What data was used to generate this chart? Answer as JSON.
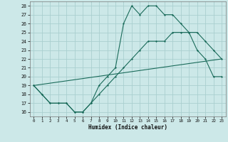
{
  "xlabel": "Humidex (Indice chaleur)",
  "background_color": "#cce8e8",
  "grid_color": "#aacfcf",
  "line_color": "#1a6b5a",
  "xlim": [
    -0.5,
    23.5
  ],
  "ylim": [
    15.5,
    28.5
  ],
  "xticks": [
    0,
    1,
    2,
    3,
    4,
    5,
    6,
    7,
    8,
    9,
    10,
    11,
    12,
    13,
    14,
    15,
    16,
    17,
    18,
    19,
    20,
    21,
    22,
    23
  ],
  "yticks": [
    16,
    17,
    18,
    19,
    20,
    21,
    22,
    23,
    24,
    25,
    26,
    27,
    28
  ],
  "line1_x": [
    0,
    1,
    2,
    3,
    4,
    5,
    6,
    7,
    8,
    9,
    10,
    11,
    12,
    13,
    14,
    15,
    16,
    17,
    18,
    19,
    20,
    21,
    22,
    23
  ],
  "line1_y": [
    19,
    18,
    17,
    17,
    17,
    16,
    16,
    17,
    19,
    20,
    21,
    26,
    28,
    27,
    28,
    28,
    27,
    27,
    26,
    25,
    23,
    22,
    20,
    20
  ],
  "line2_x": [
    0,
    1,
    2,
    3,
    4,
    5,
    6,
    7,
    8,
    9,
    10,
    11,
    12,
    13,
    14,
    15,
    16,
    17,
    18,
    19,
    20,
    21,
    22,
    23
  ],
  "line2_y": [
    19,
    18,
    17,
    17,
    17,
    16,
    16,
    17,
    18,
    19,
    20,
    21,
    22,
    23,
    24,
    24,
    24,
    25,
    25,
    25,
    25,
    24,
    23,
    22
  ],
  "line3_x": [
    0,
    23
  ],
  "line3_y": [
    19,
    22
  ]
}
